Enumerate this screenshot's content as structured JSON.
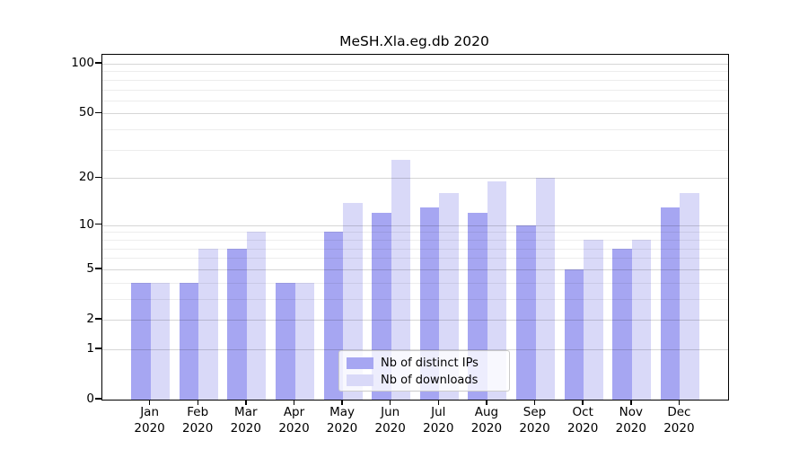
{
  "title": "MeSH.Xla.eg.db 2020",
  "chart_data": {
    "type": "bar",
    "title": "MeSH.Xla.eg.db 2020",
    "categories": [
      "Jan",
      "Feb",
      "Mar",
      "Apr",
      "May",
      "Jun",
      "Jul",
      "Aug",
      "Sep",
      "Oct",
      "Nov",
      "Dec"
    ],
    "year": "2020",
    "series": [
      {
        "name": "Nb of distinct IPs",
        "color": "#a6a6f2",
        "values": [
          4,
          4,
          7,
          4,
          9,
          12,
          13,
          12,
          10,
          5,
          7,
          13
        ]
      },
      {
        "name": "Nb of downloads",
        "color": "#d9d9f8",
        "values": [
          4,
          7,
          9,
          4,
          14,
          26,
          16,
          19,
          20,
          8,
          8,
          16
        ]
      }
    ],
    "yscale": "log10(1+x)",
    "ylim": [
      0,
      100
    ],
    "y_major_ticks": [
      0,
      1,
      2,
      5,
      10,
      20,
      50,
      100
    ],
    "y_minor_ticks": [
      3,
      4,
      6,
      7,
      8,
      9,
      30,
      40,
      60,
      70,
      80,
      90
    ],
    "grid": "on",
    "legend_position": "lower center"
  },
  "colors": {
    "axis": "#000000",
    "grid_major": "#d4d4d4",
    "grid_minor": "#ededed",
    "legend_border": "#cbcbcb",
    "bar_distinct_ips": "#a6a6f2",
    "bar_downloads": "#d9d9f8"
  }
}
